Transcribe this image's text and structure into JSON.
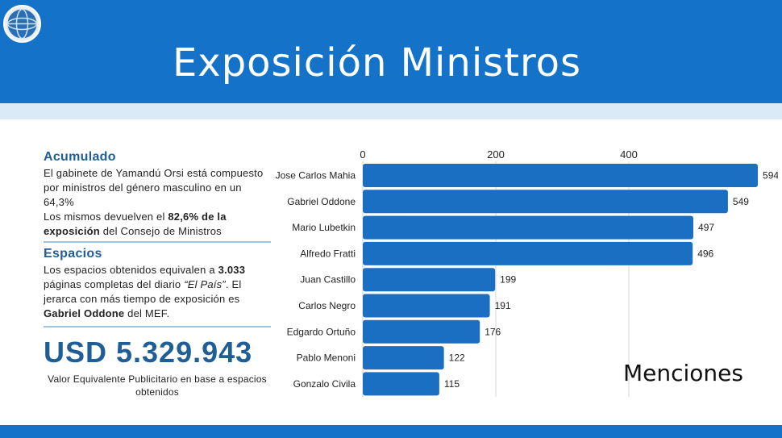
{
  "header": {
    "title": "Exposición Ministros"
  },
  "summary": {
    "acumulado_title": "Acumulado",
    "acumulado_text_1": "El gabinete de Yamandú Orsi está compuesto por ministros del género masculino en un 64,3%",
    "acumulado_text_2a": "Los mismos devuelven el ",
    "acumulado_text_2b": "82,6% de la exposición",
    "acumulado_text_2c": " del Consejo de Ministros",
    "espacios_title": "Espacios",
    "espacios_text_1": "Los espacios obtenidos equivalen a ",
    "espacios_pages": "3.033",
    "espacios_text_2": " páginas completas del diario ",
    "espacios_paper": "“El País”",
    "espacios_text_3": ". El jerarca con más tiempo de exposición es ",
    "espacios_top": "Gabriel Oddone",
    "espacios_text_4": " del MEF.",
    "usd_value": "USD 5.329.943",
    "usd_note": "Valor Equivalente Publicitario en base a espacios obtenidos"
  },
  "chart_data": {
    "type": "bar",
    "orientation": "horizontal",
    "categories": [
      "Jose Carlos Mahia",
      "Gabriel Oddone",
      "Mario Lubetkin",
      "Alfredo Fratti",
      "Juan Castillo",
      "Carlos Negro",
      "Edgardo Ortuño",
      "Pablo Menoni",
      "Gonzalo Civila"
    ],
    "values": [
      594,
      549,
      497,
      496,
      199,
      191,
      176,
      122,
      115
    ],
    "xticks": [
      0,
      200,
      400
    ],
    "xlim": [
      0,
      594
    ],
    "xlabel": "Menciones",
    "axis_position": "top",
    "grid": true,
    "bar_color": "#1b6fc2"
  }
}
